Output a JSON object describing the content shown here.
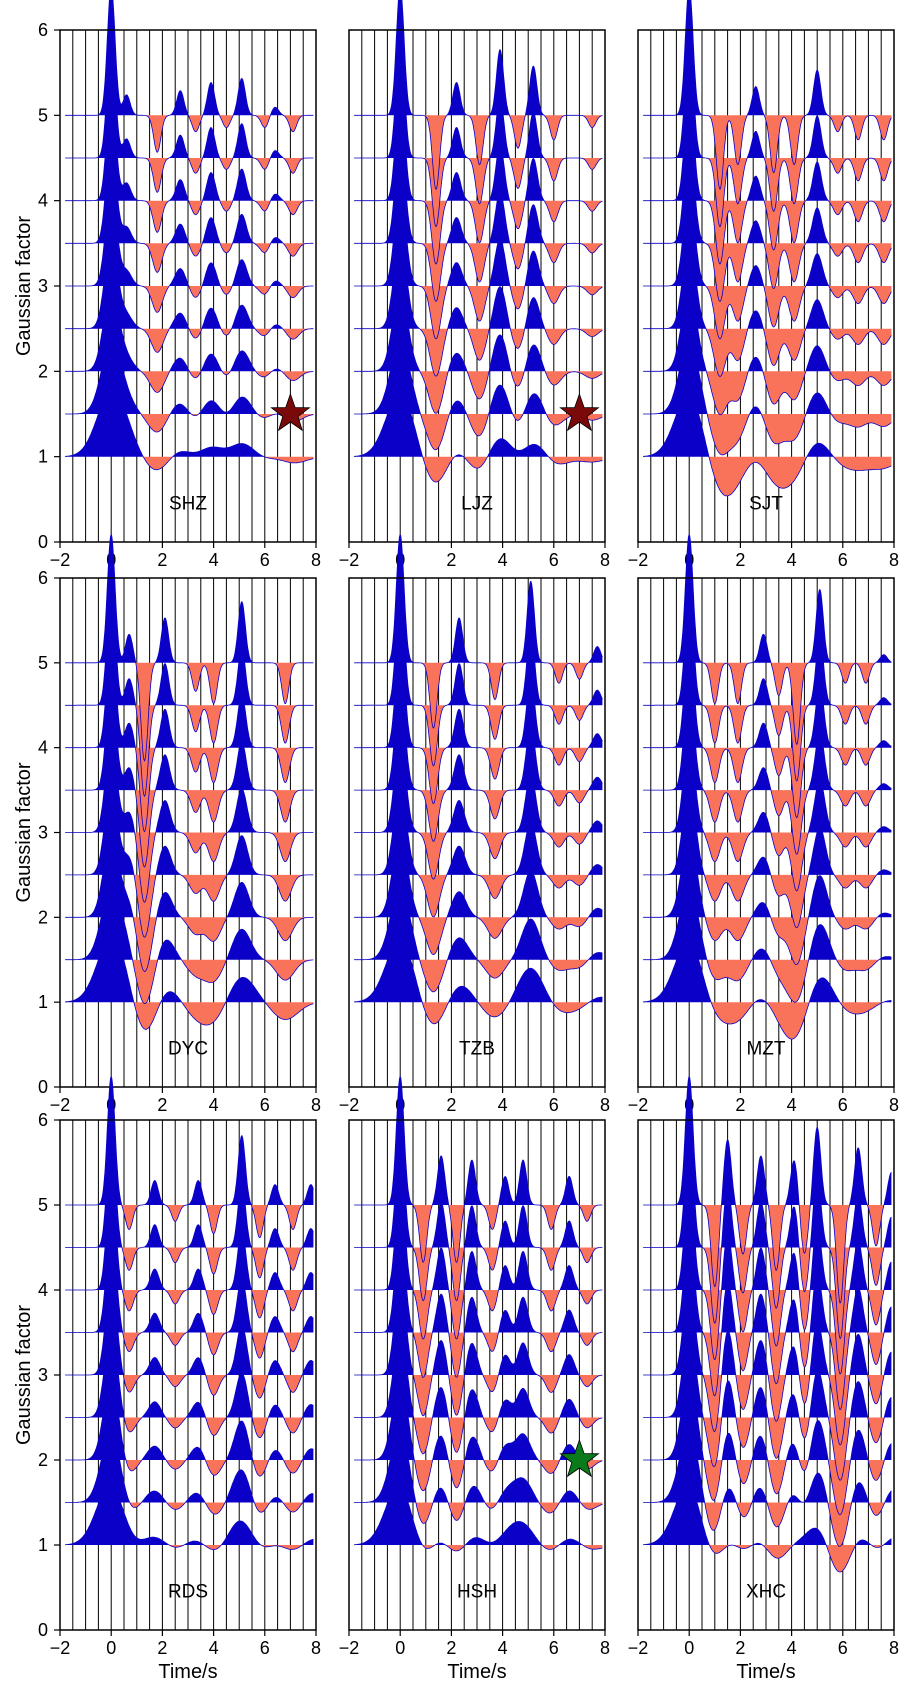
{
  "figure": {
    "ylabel": "Gaussian factor",
    "xlabel": "Time/s"
  },
  "colors": {
    "positive": "#0a00c8",
    "negative": "#f9735a",
    "star_red": "#7a0a0a",
    "star_green": "#0a7a1a",
    "frame": "#000000",
    "grid": "#000000"
  },
  "chart_data": {
    "type": "waveform-grid",
    "x_axis": {
      "range": [
        -2,
        8
      ],
      "ticks": [
        "−2",
        "0",
        "2",
        "4",
        "6",
        "8"
      ],
      "grid_step_s": 0.5
    },
    "y_axis": {
      "range": [
        0,
        6
      ],
      "ticks": [
        "0",
        "1",
        "2",
        "3",
        "4",
        "5",
        "6"
      ]
    },
    "gaussian_factors": [
      1,
      1.5,
      2,
      2.5,
      3,
      3.5,
      4,
      4.5,
      5
    ],
    "panels": [
      {
        "station": "SHZ",
        "star": {
          "color": "red",
          "t": 7.0,
          "g": 1.5
        },
        "arrivals": [
          {
            "t": 0.0,
            "a": 1.4
          },
          {
            "t": 0.6,
            "a": 0.25
          },
          {
            "t": 1.8,
            "a": -0.45
          },
          {
            "t": 2.7,
            "a": 0.3
          },
          {
            "t": 3.3,
            "a": -0.2
          },
          {
            "t": 3.9,
            "a": 0.4
          },
          {
            "t": 4.5,
            "a": -0.15
          },
          {
            "t": 5.1,
            "a": 0.45
          },
          {
            "t": 6.0,
            "a": -0.15
          },
          {
            "t": 6.4,
            "a": 0.1
          },
          {
            "t": 7.1,
            "a": -0.2
          }
        ]
      },
      {
        "station": "LJZ",
        "star": {
          "color": "red",
          "t": 7.0,
          "g": 1.5
        },
        "arrivals": [
          {
            "t": 0.0,
            "a": 1.4
          },
          {
            "t": 1.4,
            "a": -0.9
          },
          {
            "t": 2.2,
            "a": 0.4
          },
          {
            "t": 3.1,
            "a": -0.6
          },
          {
            "t": 3.9,
            "a": 0.8
          },
          {
            "t": 4.6,
            "a": -0.4
          },
          {
            "t": 5.2,
            "a": 0.6
          },
          {
            "t": 6.0,
            "a": -0.3
          },
          {
            "t": 7.5,
            "a": -0.15
          }
        ]
      },
      {
        "station": "SJT",
        "star": null,
        "arrivals": [
          {
            "t": 0.0,
            "a": 1.4
          },
          {
            "t": 1.2,
            "a": -0.9
          },
          {
            "t": 1.9,
            "a": -0.6
          },
          {
            "t": 2.6,
            "a": 0.35
          },
          {
            "t": 3.3,
            "a": -0.7
          },
          {
            "t": 4.1,
            "a": -0.6
          },
          {
            "t": 5.0,
            "a": 0.55
          },
          {
            "t": 5.8,
            "a": -0.2
          },
          {
            "t": 6.6,
            "a": -0.3
          },
          {
            "t": 7.6,
            "a": -0.3
          }
        ]
      },
      {
        "station": "DYC",
        "star": null,
        "arrivals": [
          {
            "t": 0.0,
            "a": 1.4
          },
          {
            "t": 0.7,
            "a": 0.35
          },
          {
            "t": 1.3,
            "a": -1.2
          },
          {
            "t": 2.1,
            "a": 0.55
          },
          {
            "t": 3.3,
            "a": -0.35
          },
          {
            "t": 4.0,
            "a": -0.5
          },
          {
            "t": 5.1,
            "a": 0.75
          },
          {
            "t": 6.8,
            "a": -0.5
          }
        ]
      },
      {
        "station": "TZB",
        "star": null,
        "arrivals": [
          {
            "t": 0.0,
            "a": 1.4
          },
          {
            "t": 1.3,
            "a": -0.8
          },
          {
            "t": 2.3,
            "a": 0.55
          },
          {
            "t": 3.7,
            "a": -0.45
          },
          {
            "t": 5.1,
            "a": 1.0
          },
          {
            "t": 6.2,
            "a": -0.25
          },
          {
            "t": 7.0,
            "a": -0.2
          },
          {
            "t": 7.7,
            "a": 0.2
          }
        ]
      },
      {
        "station": "MZT",
        "star": null,
        "arrivals": [
          {
            "t": 0.0,
            "a": 1.4
          },
          {
            "t": 1.0,
            "a": -0.5
          },
          {
            "t": 1.9,
            "a": -0.5
          },
          {
            "t": 2.9,
            "a": 0.35
          },
          {
            "t": 3.5,
            "a": -0.4
          },
          {
            "t": 4.2,
            "a": -1.0
          },
          {
            "t": 5.1,
            "a": 0.9
          },
          {
            "t": 6.1,
            "a": -0.25
          },
          {
            "t": 6.9,
            "a": -0.25
          },
          {
            "t": 7.6,
            "a": 0.1
          }
        ]
      },
      {
        "station": "RDS",
        "star": null,
        "arrivals": [
          {
            "t": 0.0,
            "a": 1.4
          },
          {
            "t": 0.7,
            "a": -0.3
          },
          {
            "t": 1.7,
            "a": 0.3
          },
          {
            "t": 2.5,
            "a": -0.2
          },
          {
            "t": 3.4,
            "a": 0.3
          },
          {
            "t": 4.0,
            "a": -0.35
          },
          {
            "t": 5.1,
            "a": 0.85
          },
          {
            "t": 5.8,
            "a": -0.4
          },
          {
            "t": 6.4,
            "a": 0.25
          },
          {
            "t": 7.1,
            "a": -0.3
          },
          {
            "t": 7.8,
            "a": 0.25
          }
        ]
      },
      {
        "station": "HSH",
        "star": {
          "color": "green",
          "t": 7.0,
          "g": 2.0
        },
        "arrivals": [
          {
            "t": 0.0,
            "a": 1.4
          },
          {
            "t": 0.9,
            "a": -0.7
          },
          {
            "t": 1.6,
            "a": 0.6
          },
          {
            "t": 2.2,
            "a": -0.7
          },
          {
            "t": 2.8,
            "a": 0.55
          },
          {
            "t": 3.6,
            "a": -0.3
          },
          {
            "t": 4.1,
            "a": 0.35
          },
          {
            "t": 4.8,
            "a": 0.55
          },
          {
            "t": 5.9,
            "a": -0.3
          },
          {
            "t": 6.6,
            "a": 0.35
          },
          {
            "t": 7.3,
            "a": -0.2
          }
        ]
      },
      {
        "station": "XHC",
        "star": null,
        "arrivals": [
          {
            "t": 0.0,
            "a": 1.4
          },
          {
            "t": 1.0,
            "a": -1.0
          },
          {
            "t": 1.5,
            "a": 0.8
          },
          {
            "t": 2.1,
            "a": -0.6
          },
          {
            "t": 2.8,
            "a": 0.6
          },
          {
            "t": 3.4,
            "a": -0.8
          },
          {
            "t": 4.1,
            "a": 0.55
          },
          {
            "t": 4.5,
            "a": -0.6
          },
          {
            "t": 5.0,
            "a": 0.95
          },
          {
            "t": 5.9,
            "a": -1.2
          },
          {
            "t": 6.6,
            "a": 0.7
          },
          {
            "t": 7.3,
            "a": -0.5
          },
          {
            "t": 7.9,
            "a": 0.4
          }
        ]
      }
    ]
  }
}
